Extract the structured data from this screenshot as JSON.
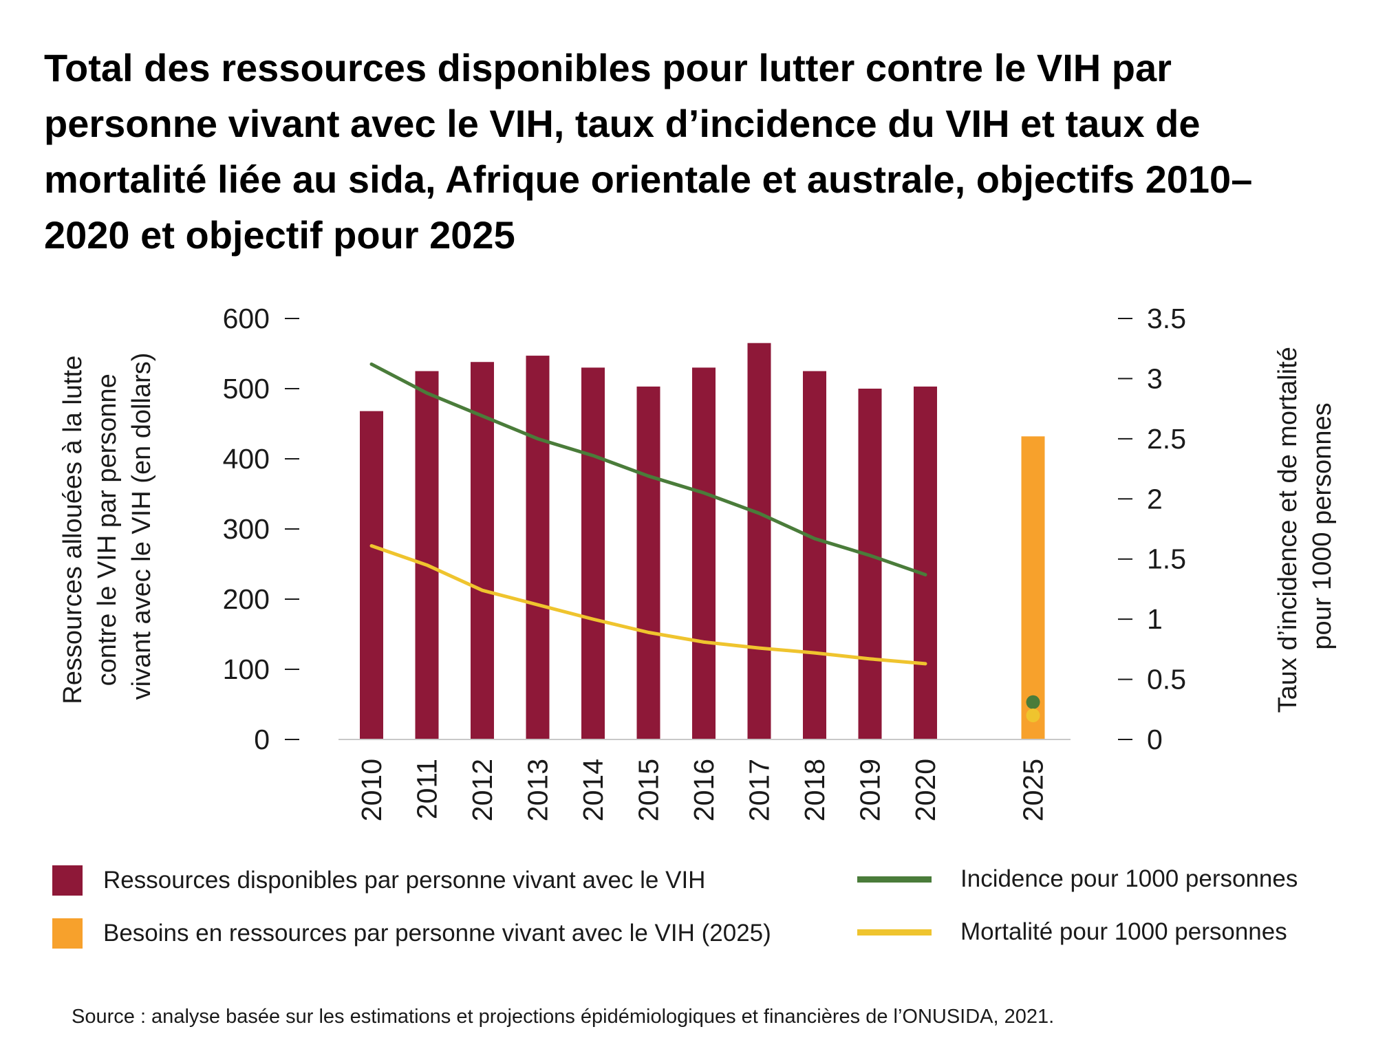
{
  "chart_data": {
    "type": "bar",
    "title": "Total des ressources disponibles pour lutter contre le VIH par personne vivant avec le VIH, taux d’incidence du VIH et taux de mortalité liée au sida, Afrique orientale et australe, objectifs 2010–2020 et objectif pour 2025",
    "categories": [
      "2010",
      "2011",
      "2012",
      "2013",
      "2014",
      "2015",
      "2016",
      "2017",
      "2018",
      "2019",
      "2020",
      "2025"
    ],
    "ylabel": "Ressources allouées à la lutte contre le VIH par personne vivant avec le VIH (en dollars)",
    "ylabel_lines": [
      "Ressources allouées à la lutte",
      "contre le VIH par personne",
      "vivant avec le VIH (en dollars)"
    ],
    "y2label": "Taux d’incidence et de mortalité pour 1000 personnes",
    "y2label_lines": [
      "Taux d’incidence et de mortalité",
      "pour 1000 personnes"
    ],
    "ylim": [
      0,
      600
    ],
    "y_ticks": [
      "0",
      "100",
      "200",
      "300",
      "400",
      "500",
      "600"
    ],
    "y2lim": [
      0,
      3.5
    ],
    "y2_ticks": [
      "0",
      "0.5",
      "1",
      "1.5",
      "2",
      "2.5",
      "3",
      "3.5"
    ],
    "grid": false,
    "series": [
      {
        "name": "Ressources disponibles par personne vivant avec le VIH",
        "type": "bar",
        "axis": "left",
        "color": "#8E1838",
        "values": [
          468,
          525,
          538,
          547,
          530,
          503,
          530,
          565,
          525,
          500,
          503,
          null
        ]
      },
      {
        "name": "Besoins en ressources par personne vivant avec le VIH (2025)",
        "type": "bar",
        "axis": "left",
        "color": "#F7A12C",
        "values": [
          null,
          null,
          null,
          null,
          null,
          null,
          null,
          null,
          null,
          null,
          null,
          432
        ]
      },
      {
        "name": "Incidence pour 1000 personnes",
        "type": "line",
        "axis": "right",
        "color": "#4A7C3A",
        "values": [
          3.12,
          2.88,
          2.69,
          2.5,
          2.36,
          2.19,
          2.05,
          1.88,
          1.67,
          1.53,
          1.37,
          0.31
        ]
      },
      {
        "name": "Mortalité pour 1000 personnes",
        "type": "line",
        "axis": "right",
        "color": "#EFC42E",
        "values": [
          1.61,
          1.45,
          1.24,
          1.12,
          1.0,
          0.89,
          0.81,
          0.76,
          0.72,
          0.67,
          0.63,
          0.2
        ]
      }
    ],
    "legend_position": "bottom"
  },
  "source": "Source : analyse basée sur les estimations et projections épidémiologiques et financières de l’ONUSIDA, 2021."
}
